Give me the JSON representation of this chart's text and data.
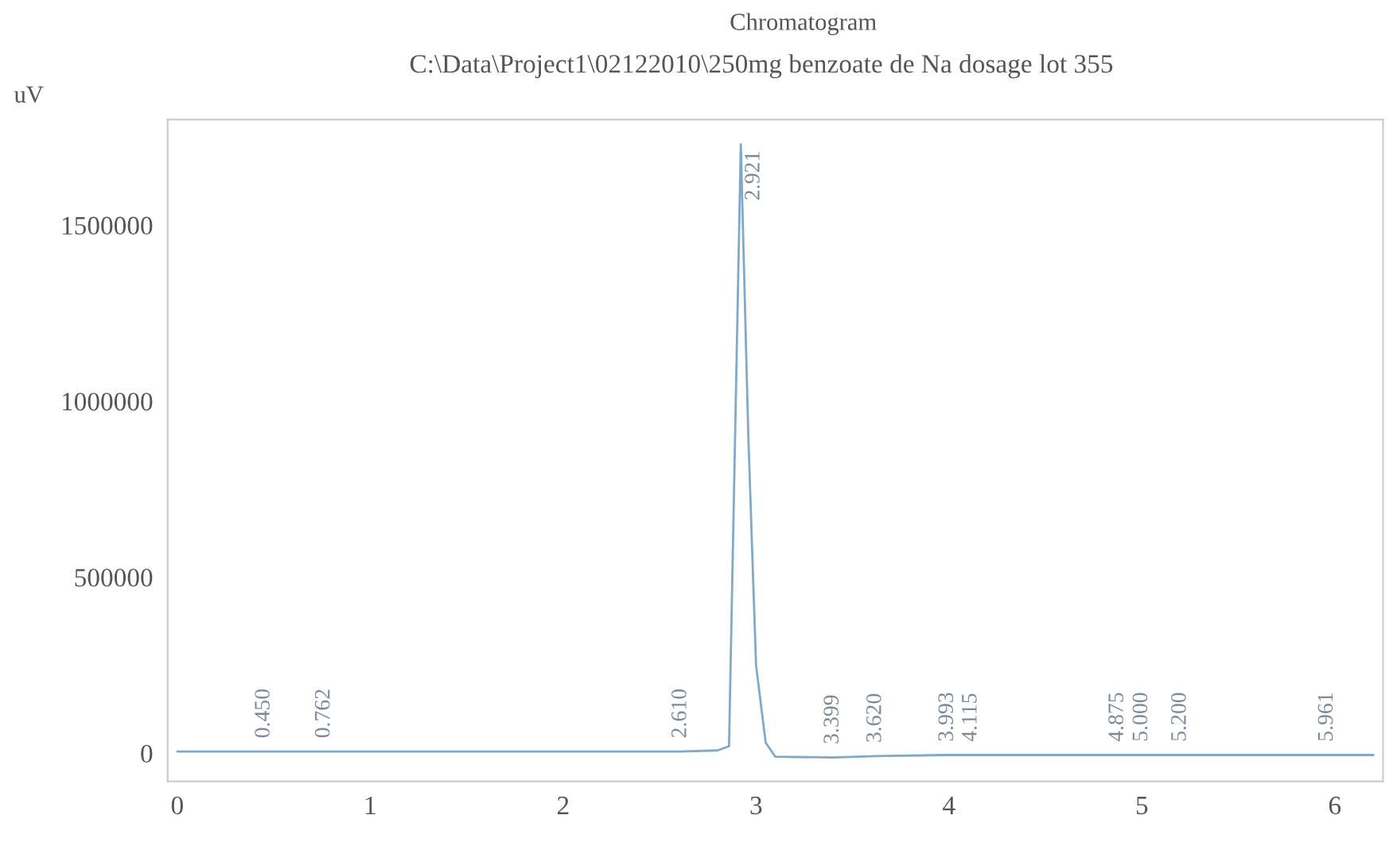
{
  "chart_data": {
    "type": "line",
    "title": "Chromatogram",
    "subtitle": "C:\\Data\\Project1\\02122010\\250mg benzoate de Na dosage lot 355",
    "ylabel": "uV",
    "x": [
      0,
      0.45,
      0.762,
      1.5,
      2.3,
      2.61,
      2.8,
      2.86,
      2.921,
      2.96,
      3.0,
      3.05,
      3.1,
      3.399,
      3.62,
      3.993,
      4.115,
      4.875,
      5.0,
      5.2,
      5.961,
      6.2
    ],
    "series": [
      {
        "color": "#7fa9c9",
        "values": [
          5000,
          5000,
          5000,
          5000,
          5000,
          5000,
          8000,
          20000,
          1730000,
          900000,
          250000,
          30000,
          -10000,
          -12000,
          -8000,
          -5000,
          -5000,
          -5000,
          -5000,
          -5000,
          -5000,
          -5000
        ]
      }
    ],
    "xlim": [
      -0.05,
      6.25
    ],
    "ylim": [
      -80000,
      1800000
    ],
    "xticks": [
      0,
      1,
      2,
      3,
      4,
      5,
      6
    ],
    "yticks": [
      0,
      500000,
      1000000,
      1500000
    ],
    "grid": false,
    "line_style": "solid",
    "marker": "none",
    "annotations": [
      {
        "text": "0.450",
        "x": 0.45,
        "y": 5000
      },
      {
        "text": "0.762",
        "x": 0.762,
        "y": 5000
      },
      {
        "text": "2.610",
        "x": 2.61,
        "y": 5000
      },
      {
        "text": "2.921",
        "x": 2.921,
        "y": 1730000
      },
      {
        "text": "3.399",
        "x": 3.399,
        "y": -12000
      },
      {
        "text": "3.620",
        "x": 3.62,
        "y": -8000
      },
      {
        "text": "3.993",
        "x": 3.993,
        "y": -5000
      },
      {
        "text": "4.115",
        "x": 4.115,
        "y": -5000
      },
      {
        "text": "4.875",
        "x": 4.875,
        "y": -5000
      },
      {
        "text": "5.000",
        "x": 5.0,
        "y": -5000
      },
      {
        "text": "5.200",
        "x": 5.2,
        "y": -5000
      },
      {
        "text": "5.961",
        "x": 5.961,
        "y": -5000
      }
    ]
  }
}
